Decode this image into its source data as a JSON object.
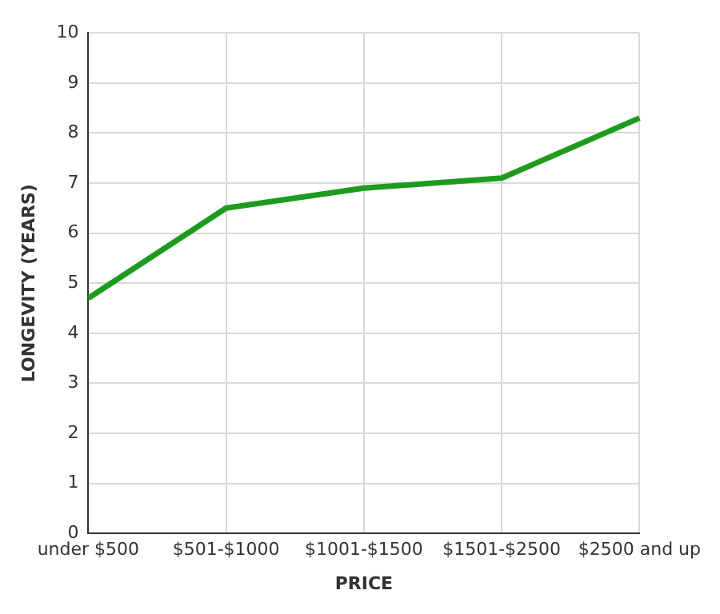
{
  "chart_data": {
    "type": "line",
    "xlabel": "PRICE",
    "ylabel": "LONGEVITY (YEARS)",
    "categories": [
      "under $500",
      "$501-$1000",
      "$1001-$1500",
      "$1501-$2500",
      "$2500 and up"
    ],
    "series": [
      {
        "color": "#1e9b1e",
        "values": [
          4.7,
          6.5,
          6.9,
          7.1,
          8.3
        ]
      }
    ],
    "ylim": [
      0,
      10
    ],
    "yticks": [
      0,
      1,
      2,
      3,
      4,
      5,
      6,
      7,
      8,
      9,
      10
    ],
    "grid": true,
    "marker": "none",
    "line_style": "solid"
  }
}
